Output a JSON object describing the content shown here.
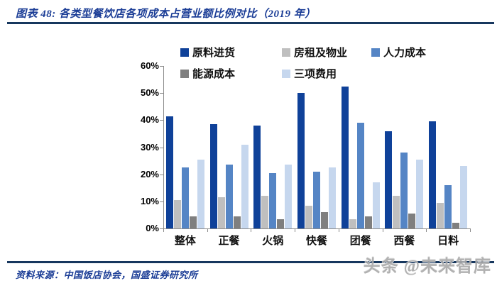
{
  "header": {
    "title": "图表 48:  各类型餐饮店各项成本占营业额比例对比（2019 年）"
  },
  "footer": {
    "source": "资料来源：中国饭店协会，国盛证券研究所"
  },
  "watermark": {
    "text": "头条 @未来智库"
  },
  "colors": {
    "accent_navy": "#17375e",
    "title_blue": "#1b3d96",
    "axis_gray": "#8a8a8a"
  },
  "chart_data": {
    "type": "bar",
    "title": "各类型餐饮店各项成本占营业额比例对比（2019 年）",
    "categories": [
      "整体",
      "正餐",
      "火锅",
      "快餐",
      "团餐",
      "西餐",
      "日料"
    ],
    "series": [
      {
        "name": "原料进货",
        "color": "#0f4199",
        "values": [
          41.5,
          38.5,
          38,
          50,
          52.5,
          36,
          39.5
        ]
      },
      {
        "name": "房租及物业",
        "color": "#bfbfbf",
        "values": [
          10.5,
          11.5,
          12,
          8.5,
          3.5,
          12,
          9.5
        ]
      },
      {
        "name": "人力成本",
        "color": "#5585c5",
        "values": [
          22.5,
          23.5,
          20.5,
          21,
          39,
          28,
          16
        ]
      },
      {
        "name": "能源成本",
        "color": "#7f7f7f",
        "values": [
          4.5,
          4.5,
          3.5,
          6,
          4.5,
          5.5,
          2
        ]
      },
      {
        "name": "三项费用",
        "color": "#c6d7ee",
        "values": [
          25.5,
          31,
          23.5,
          22.5,
          17,
          25.5,
          23
        ]
      }
    ],
    "ylim": [
      0,
      60
    ],
    "yticks": [
      "0%",
      "10%",
      "20%",
      "30%",
      "40%",
      "50%",
      "60%"
    ],
    "unit": "%",
    "grid": false,
    "legend_position": "top"
  }
}
